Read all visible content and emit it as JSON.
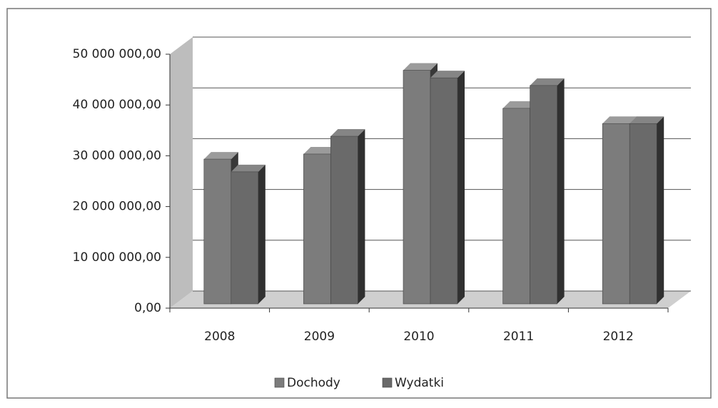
{
  "chart_data": {
    "type": "bar3d",
    "categories": [
      "2008",
      "2009",
      "2010",
      "2011",
      "2012"
    ],
    "series": [
      {
        "name": "Dochody",
        "color": "#7c7c7c",
        "values": [
          28500000,
          29500000,
          46000000,
          38500000,
          35500000
        ]
      },
      {
        "name": "Wydatki",
        "color": "#6a6a6a",
        "values": [
          26000000,
          33000000,
          44500000,
          43000000,
          35500000
        ]
      }
    ],
    "ylim": [
      0,
      50000000
    ],
    "yticks": [
      {
        "value": 0,
        "label": "0,00"
      },
      {
        "value": 10000000,
        "label": "10 000 000,00"
      },
      {
        "value": 20000000,
        "label": "20 000 000,00"
      },
      {
        "value": 30000000,
        "label": "30 000 000,00"
      },
      {
        "value": 40000000,
        "label": "40 000 000,00"
      },
      {
        "value": 50000000,
        "label": "50 000 000,00"
      }
    ],
    "grid": true,
    "legend": "bottom"
  }
}
